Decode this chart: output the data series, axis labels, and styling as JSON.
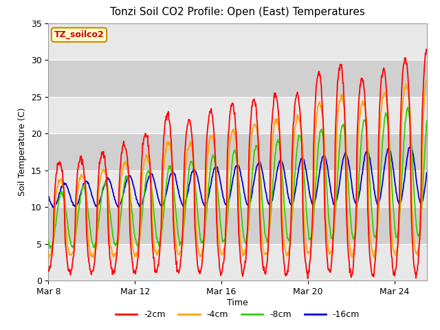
{
  "title": "Tonzi Soil CO2 Profile: Open (East) Temperatures",
  "xlabel": "Time",
  "ylabel": "Soil Temperature (C)",
  "ylim": [
    0,
    35
  ],
  "annotation": "TZ_soilco2",
  "line_colors": [
    "#ff0000",
    "#ffa500",
    "#33cc00",
    "#0000cc"
  ],
  "line_labels": [
    "-2cm",
    "-4cm",
    "-8cm",
    "-16cm"
  ],
  "xtick_labels": [
    "Mar 8",
    "Mar 12",
    "Mar 16",
    "Mar 20",
    "Mar 24"
  ],
  "xtick_positions": [
    0,
    4,
    8,
    12,
    16
  ],
  "background_color": "#ffffff",
  "plot_bg_color": "#e0e0e0",
  "num_days": 17.5,
  "samples_per_day": 48
}
